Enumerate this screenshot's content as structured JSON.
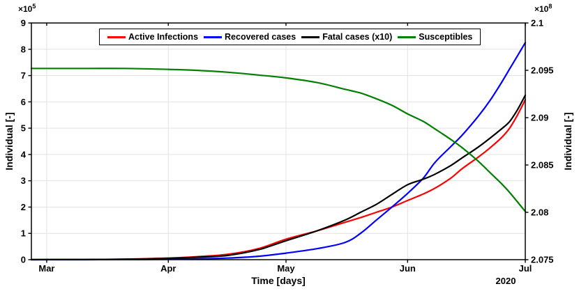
{
  "chart_data": {
    "type": "line",
    "title": "",
    "axes": {
      "x": {
        "title": "Time [days]",
        "year": "2020",
        "domain_days": [
          -3.9,
          122
        ],
        "ticks": [
          {
            "day": 0,
            "label": "Mar"
          },
          {
            "day": 31,
            "label": "Apr"
          },
          {
            "day": 61,
            "label": "May"
          },
          {
            "day": 92,
            "label": "Jun"
          },
          {
            "day": 122,
            "label": "Jul"
          }
        ]
      },
      "left": {
        "title": "Individual [-]",
        "exponent_base": "×10",
        "exponent_power": "5",
        "range": [
          0,
          9
        ],
        "ticks": [
          {
            "v": 0,
            "label": "0"
          },
          {
            "v": 1,
            "label": "1"
          },
          {
            "v": 2,
            "label": "2"
          },
          {
            "v": 3,
            "label": "3"
          },
          {
            "v": 4,
            "label": "4"
          },
          {
            "v": 5,
            "label": "5"
          },
          {
            "v": 6,
            "label": "6"
          },
          {
            "v": 7,
            "label": "7"
          },
          {
            "v": 8,
            "label": "8"
          },
          {
            "v": 9,
            "label": "9"
          }
        ]
      },
      "right": {
        "title": "Individual [-]",
        "exponent_base": "×10",
        "exponent_power": "8",
        "range": [
          2.075,
          2.1
        ],
        "ticks": [
          {
            "v": 2.075,
            "label": "2.075"
          },
          {
            "v": 2.08,
            "label": "2.08"
          },
          {
            "v": 2.085,
            "label": "2.085"
          },
          {
            "v": 2.09,
            "label": "2.09"
          },
          {
            "v": 2.095,
            "label": "2.095"
          },
          {
            "v": 2.1,
            "label": "2.1"
          }
        ]
      }
    },
    "grid": {
      "show": true,
      "color": "#e2e2e2"
    },
    "legend": {
      "position": "north",
      "border_color": "#000000",
      "background": "#ffffff"
    },
    "days": [
      -3.9,
      0,
      10,
      20,
      31,
      38,
      46,
      54,
      61,
      69,
      76,
      80,
      84,
      88,
      92,
      96,
      99,
      103,
      106,
      110,
      113,
      116,
      118,
      120,
      122
    ],
    "series": [
      {
        "name": "Active Infections",
        "color": "#ff0000",
        "axis": "left",
        "unit": "1e5",
        "values": [
          0.002,
          0.003,
          0.008,
          0.02,
          0.06,
          0.11,
          0.2,
          0.42,
          0.78,
          1.1,
          1.42,
          1.6,
          1.8,
          2.0,
          2.25,
          2.5,
          2.72,
          3.1,
          3.47,
          3.9,
          4.25,
          4.65,
          5.0,
          5.5,
          6.08
        ]
      },
      {
        "name": "Recovered cases",
        "color": "#0000ff",
        "axis": "left",
        "unit": "1e5",
        "values": [
          0.0,
          0.0,
          0.001,
          0.004,
          0.015,
          0.03,
          0.06,
          0.13,
          0.25,
          0.42,
          0.65,
          1.0,
          1.5,
          2.0,
          2.52,
          3.1,
          3.7,
          4.3,
          4.75,
          5.45,
          6.05,
          6.75,
          7.25,
          7.75,
          8.25
        ]
      },
      {
        "name": "Fatal cases (x10)",
        "color": "#000000",
        "axis": "left",
        "unit": "1e5",
        "values": [
          0.001,
          0.002,
          0.006,
          0.016,
          0.05,
          0.09,
          0.16,
          0.38,
          0.72,
          1.1,
          1.5,
          1.8,
          2.1,
          2.48,
          2.85,
          3.06,
          3.25,
          3.58,
          3.88,
          4.28,
          4.62,
          4.98,
          5.25,
          5.7,
          6.25
        ]
      },
      {
        "name": "Susceptibles",
        "color": "#008000",
        "axis": "right",
        "unit": "1e8",
        "values": [
          2.0952,
          2.0952,
          2.0952,
          2.0952,
          2.0951,
          2.095,
          2.0948,
          2.0945,
          2.0942,
          2.0937,
          2.093,
          2.0926,
          2.092,
          2.0913,
          2.0904,
          2.0896,
          2.0888,
          2.0877,
          2.0868,
          2.0854,
          2.0842,
          2.083,
          2.0821,
          2.0811,
          2.0801
        ]
      }
    ]
  }
}
